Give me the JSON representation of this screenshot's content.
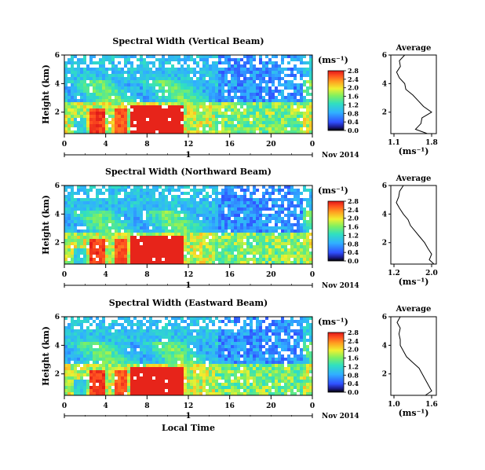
{
  "chart_data": [
    {
      "type": "heatmap",
      "title": "Spectral Width (Vertical Beam)",
      "ylabel": "Height (km)",
      "xlabel": "",
      "x_ticks": [
        "0",
        "4",
        "8",
        "12",
        "16",
        "20",
        "0"
      ],
      "y_ticks": [
        "2",
        "4",
        "6"
      ],
      "xlim": [
        0,
        24
      ],
      "ylim": [
        0.5,
        6
      ],
      "date_label": "Nov 2014",
      "date_marker": "1",
      "colorbar": {
        "unit": "(ms⁻¹)",
        "ticks": [
          "0.0",
          "0.4",
          "0.8",
          "1.2",
          "1.6",
          "2.0",
          "2.4",
          "2.8"
        ],
        "range": [
          0,
          2.8
        ]
      },
      "average": {
        "title": "Average",
        "xlabel": "(ms⁻¹)",
        "x_ticks": [
          "1.1",
          "1.8"
        ],
        "xlim": [
          1.1,
          1.8
        ],
        "y_ticks": [
          "2",
          "4",
          "6"
        ],
        "height_km": [
          6.0,
          5.6,
          5.2,
          4.8,
          4.4,
          4.0,
          3.6,
          3.2,
          2.8,
          2.4,
          2.0,
          1.6,
          1.2,
          0.8,
          0.5
        ],
        "width_ms": [
          1.3,
          1.2,
          1.22,
          1.15,
          1.2,
          1.3,
          1.32,
          1.45,
          1.55,
          1.65,
          1.8,
          1.62,
          1.6,
          1.5,
          1.72
        ]
      }
    },
    {
      "type": "heatmap",
      "title": "Spectral Width (Northward Beam)",
      "ylabel": "Height (km)",
      "xlabel": "",
      "x_ticks": [
        "0",
        "4",
        "8",
        "12",
        "16",
        "20",
        "0"
      ],
      "y_ticks": [
        "2",
        "4",
        "6"
      ],
      "xlim": [
        0,
        24
      ],
      "ylim": [
        0.5,
        6
      ],
      "date_label": "Nov 2014",
      "date_marker": "1",
      "colorbar": {
        "unit": "(ms⁻¹)",
        "ticks": [
          "0.0",
          "0.4",
          "0.8",
          "1.2",
          "1.6",
          "2.0",
          "2.4",
          "2.8"
        ],
        "range": [
          0,
          2.8
        ]
      },
      "average": {
        "title": "Average",
        "xlabel": "(ms⁻¹)",
        "x_ticks": [
          "1.2",
          "2.0"
        ],
        "xlim": [
          1.2,
          2.0
        ],
        "y_ticks": [
          "2",
          "4",
          "6"
        ],
        "height_km": [
          6.0,
          5.6,
          5.2,
          4.8,
          4.4,
          4.0,
          3.6,
          3.2,
          2.8,
          2.4,
          2.0,
          1.6,
          1.2,
          0.8,
          0.5
        ],
        "width_ms": [
          1.4,
          1.32,
          1.3,
          1.25,
          1.32,
          1.4,
          1.5,
          1.55,
          1.65,
          1.75,
          1.85,
          1.92,
          2.0,
          1.95,
          2.05
        ]
      }
    },
    {
      "type": "heatmap",
      "title": "Spectral Width (Eastward Beam)",
      "ylabel": "Height (km)",
      "xlabel": "Local Time",
      "x_ticks": [
        "0",
        "4",
        "8",
        "12",
        "16",
        "20",
        "0"
      ],
      "y_ticks": [
        "2",
        "4",
        "6"
      ],
      "xlim": [
        0,
        24
      ],
      "ylim": [
        0.5,
        6
      ],
      "date_label": "Nov 2014",
      "date_marker": "1",
      "colorbar": {
        "unit": "(ms⁻¹)",
        "ticks": [
          "0.0",
          "0.4",
          "0.8",
          "1.2",
          "1.6",
          "2.0",
          "2.4",
          "2.8"
        ],
        "range": [
          0,
          2.8
        ]
      },
      "average": {
        "title": "Average",
        "xlabel": "(ms⁻¹)",
        "x_ticks": [
          "1.0",
          "1.6"
        ],
        "xlim": [
          1.0,
          1.6
        ],
        "y_ticks": [
          "2",
          "4",
          "6"
        ],
        "height_km": [
          6.0,
          5.6,
          5.2,
          4.8,
          4.4,
          4.0,
          3.6,
          3.2,
          2.8,
          2.4,
          2.0,
          1.6,
          1.2,
          0.8,
          0.5
        ],
        "width_ms": [
          1.1,
          1.05,
          1.1,
          1.08,
          1.1,
          1.1,
          1.15,
          1.2,
          1.3,
          1.4,
          1.45,
          1.5,
          1.55,
          1.6,
          1.5
        ]
      }
    }
  ]
}
